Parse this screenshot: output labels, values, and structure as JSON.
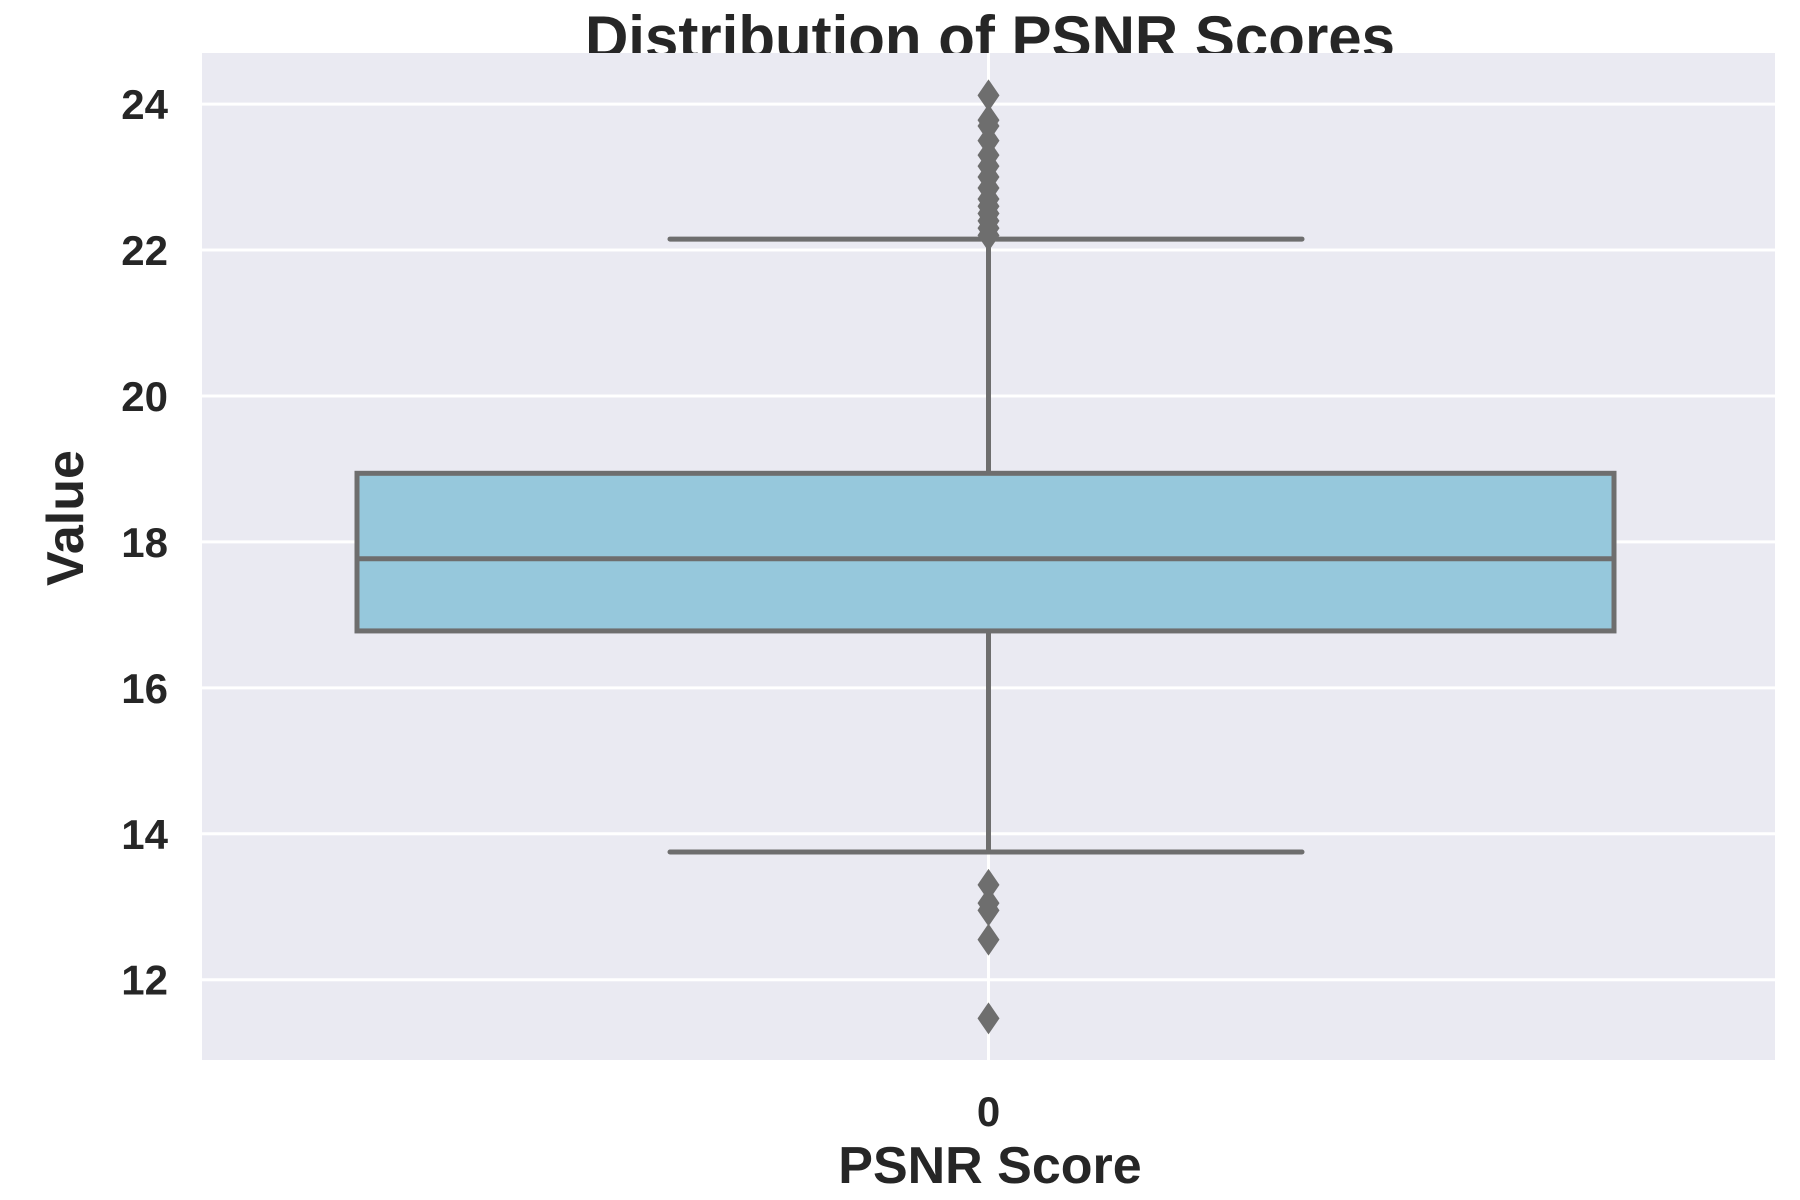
{
  "chart_data": {
    "type": "box",
    "title": "Distribution of PSNR Scores",
    "xlabel": "PSNR Score",
    "ylabel": "Value",
    "categories": [
      "0"
    ],
    "yticks": [
      "12",
      "14",
      "16",
      "18",
      "20",
      "22",
      "24"
    ],
    "ylim": [
      10.9,
      24.7
    ],
    "grid": true,
    "box": {
      "category": "0",
      "whisker_low": 13.75,
      "q1": 16.78,
      "median": 17.77,
      "q3": 18.94,
      "whisker_high": 22.15
    },
    "outliers": [
      11.47,
      12.55,
      12.95,
      13.05,
      13.3,
      22.2,
      22.3,
      22.4,
      22.5,
      22.6,
      22.7,
      22.85,
      23.0,
      23.15,
      23.3,
      23.5,
      23.7,
      23.78,
      24.12
    ],
    "colors": {
      "background": "#eaeaf2",
      "grid": "#ffffff",
      "box_fill": "#96c8dc",
      "box_edge": "#6e6e6e"
    }
  }
}
